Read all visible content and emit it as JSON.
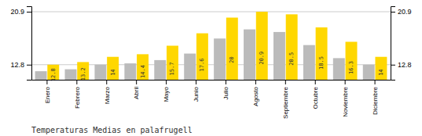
{
  "chart_data": {
    "type": "bar",
    "title": "Temperaturas Medias en palafrugell",
    "categories": [
      "Enero",
      "Febrero",
      "Marzo",
      "Abril",
      "Mayo",
      "Junio",
      "Julio",
      "Agosto",
      "Septiembre",
      "Octubre",
      "Noviembre",
      "Diciembre"
    ],
    "series": [
      {
        "color": "#BBBBBB",
        "values": [
          11.8,
          12.1,
          12.8,
          13.0,
          13.5,
          14.5,
          16.8,
          18.2,
          17.8,
          15.8,
          13.8,
          12.8
        ]
      },
      {
        "color": "#FFD700",
        "values": [
          12.8,
          13.2,
          14.0,
          14.4,
          15.7,
          17.6,
          20.0,
          20.9,
          20.5,
          18.5,
          16.3,
          14.0
        ],
        "data_labels": true
      }
    ],
    "ylim": [
      10.5,
      21.736
    ],
    "yticks": [
      12.8,
      20.9
    ],
    "y2lim": [
      10.5,
      21.736
    ],
    "y2ticks": [
      12.8,
      20.9
    ],
    "grid": true
  }
}
